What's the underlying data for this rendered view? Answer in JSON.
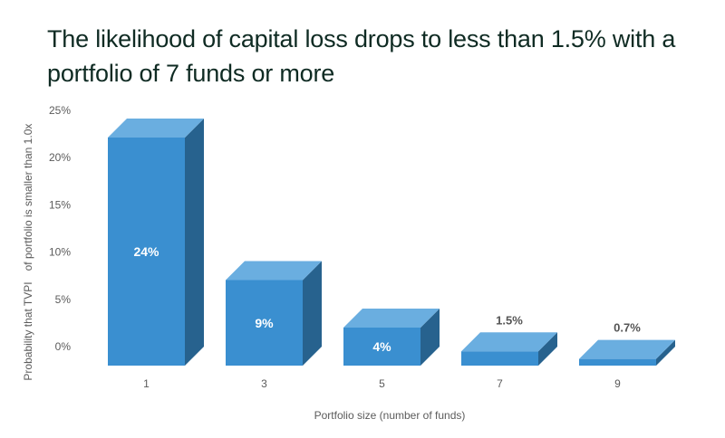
{
  "title": "The likelihood of capital loss drops to less than 1.5% with a portfolio of 7 funds or more",
  "chart_data": {
    "type": "bar",
    "categories": [
      "1",
      "3",
      "5",
      "7",
      "9"
    ],
    "values": [
      24,
      9,
      4,
      1.5,
      0.7
    ],
    "data_labels": [
      "24%",
      "9%",
      "4%",
      "1.5%",
      "0.7%"
    ],
    "xlabel": "Portfolio size (number of funds)",
    "ylabel_line1": "Probability that TVPI",
    "ylabel_line2": "of portfolio is smaller than 1.0x",
    "yticks": [
      "0%",
      "5%",
      "10%",
      "15%",
      "20%",
      "25%"
    ],
    "ylim": [
      0,
      25
    ],
    "grid": false,
    "style": "3d-box",
    "colors": {
      "front": "#3a8fd0",
      "top": "#6aaee0",
      "side": "#27628e"
    }
  }
}
